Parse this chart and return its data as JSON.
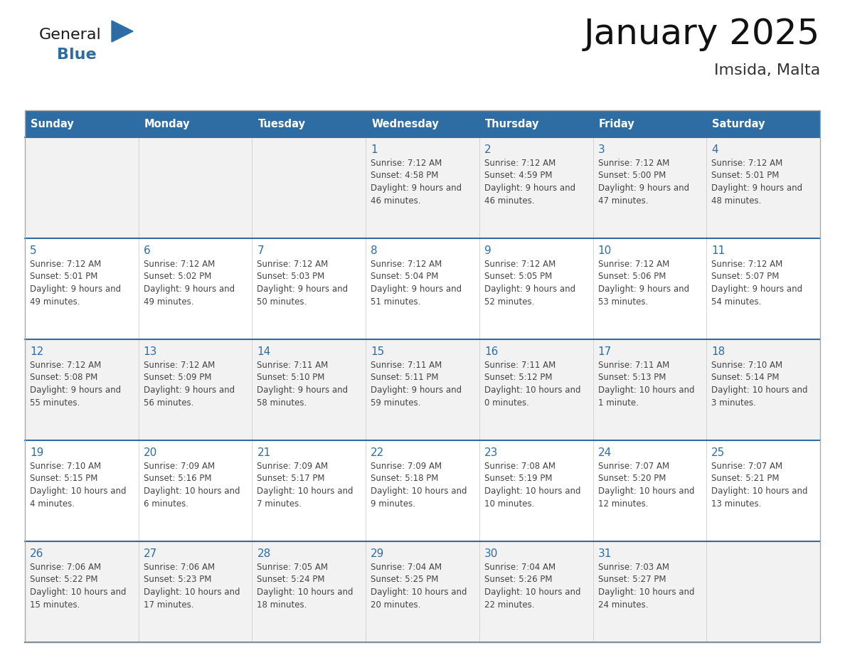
{
  "title": "January 2025",
  "subtitle": "Imsida, Malta",
  "days_of_week": [
    "Sunday",
    "Monday",
    "Tuesday",
    "Wednesday",
    "Thursday",
    "Friday",
    "Saturday"
  ],
  "header_bg": "#2E6DA4",
  "header_text": "#FFFFFF",
  "cell_bg_light": "#F2F2F2",
  "cell_bg_white": "#FFFFFF",
  "cell_border": "#CCCCCC",
  "day_num_color": "#2E6DA4",
  "info_text_color": "#444444",
  "logo_general_color": "#1a1a1a",
  "logo_blue_color": "#2E6DA4",
  "row_separator_color": "#2E6DA4",
  "calendar_data": {
    "1": {
      "sunrise": "7:12 AM",
      "sunset": "4:58 PM",
      "daylight": "9 hours and 46 minutes"
    },
    "2": {
      "sunrise": "7:12 AM",
      "sunset": "4:59 PM",
      "daylight": "9 hours and 46 minutes"
    },
    "3": {
      "sunrise": "7:12 AM",
      "sunset": "5:00 PM",
      "daylight": "9 hours and 47 minutes"
    },
    "4": {
      "sunrise": "7:12 AM",
      "sunset": "5:01 PM",
      "daylight": "9 hours and 48 minutes"
    },
    "5": {
      "sunrise": "7:12 AM",
      "sunset": "5:01 PM",
      "daylight": "9 hours and 49 minutes"
    },
    "6": {
      "sunrise": "7:12 AM",
      "sunset": "5:02 PM",
      "daylight": "9 hours and 49 minutes"
    },
    "7": {
      "sunrise": "7:12 AM",
      "sunset": "5:03 PM",
      "daylight": "9 hours and 50 minutes"
    },
    "8": {
      "sunrise": "7:12 AM",
      "sunset": "5:04 PM",
      "daylight": "9 hours and 51 minutes"
    },
    "9": {
      "sunrise": "7:12 AM",
      "sunset": "5:05 PM",
      "daylight": "9 hours and 52 minutes"
    },
    "10": {
      "sunrise": "7:12 AM",
      "sunset": "5:06 PM",
      "daylight": "9 hours and 53 minutes"
    },
    "11": {
      "sunrise": "7:12 AM",
      "sunset": "5:07 PM",
      "daylight": "9 hours and 54 minutes"
    },
    "12": {
      "sunrise": "7:12 AM",
      "sunset": "5:08 PM",
      "daylight": "9 hours and 55 minutes"
    },
    "13": {
      "sunrise": "7:12 AM",
      "sunset": "5:09 PM",
      "daylight": "9 hours and 56 minutes"
    },
    "14": {
      "sunrise": "7:11 AM",
      "sunset": "5:10 PM",
      "daylight": "9 hours and 58 minutes"
    },
    "15": {
      "sunrise": "7:11 AM",
      "sunset": "5:11 PM",
      "daylight": "9 hours and 59 minutes"
    },
    "16": {
      "sunrise": "7:11 AM",
      "sunset": "5:12 PM",
      "daylight": "10 hours and 0 minutes"
    },
    "17": {
      "sunrise": "7:11 AM",
      "sunset": "5:13 PM",
      "daylight": "10 hours and 1 minute"
    },
    "18": {
      "sunrise": "7:10 AM",
      "sunset": "5:14 PM",
      "daylight": "10 hours and 3 minutes"
    },
    "19": {
      "sunrise": "7:10 AM",
      "sunset": "5:15 PM",
      "daylight": "10 hours and 4 minutes"
    },
    "20": {
      "sunrise": "7:09 AM",
      "sunset": "5:16 PM",
      "daylight": "10 hours and 6 minutes"
    },
    "21": {
      "sunrise": "7:09 AM",
      "sunset": "5:17 PM",
      "daylight": "10 hours and 7 minutes"
    },
    "22": {
      "sunrise": "7:09 AM",
      "sunset": "5:18 PM",
      "daylight": "10 hours and 9 minutes"
    },
    "23": {
      "sunrise": "7:08 AM",
      "sunset": "5:19 PM",
      "daylight": "10 hours and 10 minutes"
    },
    "24": {
      "sunrise": "7:07 AM",
      "sunset": "5:20 PM",
      "daylight": "10 hours and 12 minutes"
    },
    "25": {
      "sunrise": "7:07 AM",
      "sunset": "5:21 PM",
      "daylight": "10 hours and 13 minutes"
    },
    "26": {
      "sunrise": "7:06 AM",
      "sunset": "5:22 PM",
      "daylight": "10 hours and 15 minutes"
    },
    "27": {
      "sunrise": "7:06 AM",
      "sunset": "5:23 PM",
      "daylight": "10 hours and 17 minutes"
    },
    "28": {
      "sunrise": "7:05 AM",
      "sunset": "5:24 PM",
      "daylight": "10 hours and 18 minutes"
    },
    "29": {
      "sunrise": "7:04 AM",
      "sunset": "5:25 PM",
      "daylight": "10 hours and 20 minutes"
    },
    "30": {
      "sunrise": "7:04 AM",
      "sunset": "5:26 PM",
      "daylight": "10 hours and 22 minutes"
    },
    "31": {
      "sunrise": "7:03 AM",
      "sunset": "5:27 PM",
      "daylight": "10 hours and 24 minutes"
    }
  },
  "calendar_grid": [
    [
      null,
      null,
      null,
      "1",
      "2",
      "3",
      "4"
    ],
    [
      "5",
      "6",
      "7",
      "8",
      "9",
      "10",
      "11"
    ],
    [
      "12",
      "13",
      "14",
      "15",
      "16",
      "17",
      "18"
    ],
    [
      "19",
      "20",
      "21",
      "22",
      "23",
      "24",
      "25"
    ],
    [
      "26",
      "27",
      "28",
      "29",
      "30",
      "31",
      null
    ]
  ]
}
